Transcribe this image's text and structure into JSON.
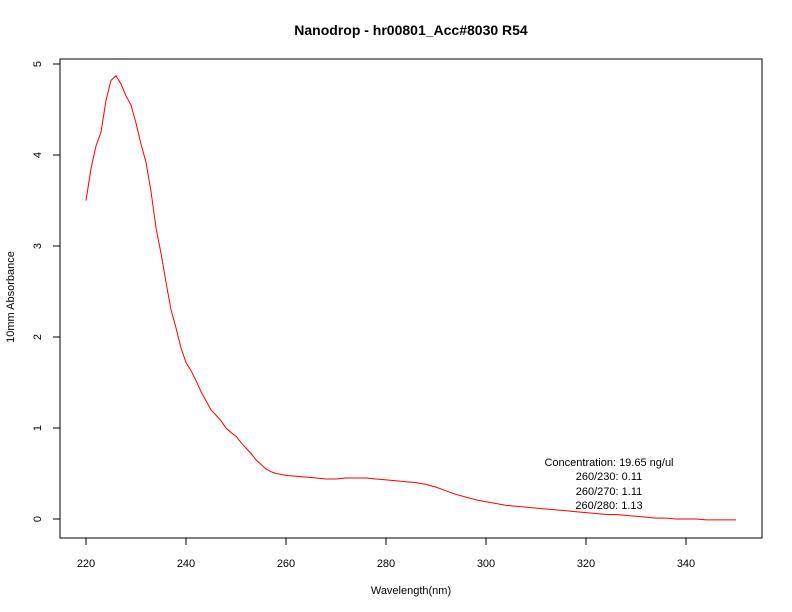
{
  "chart_data": {
    "type": "line",
    "title": "Nanodrop - hr00801_Acc#8030 R54",
    "xlabel": "Wavelength(nm)",
    "ylabel": "10mm Absorbance",
    "xlim": [
      220,
      350
    ],
    "ylim": [
      0,
      5
    ],
    "xticks": [
      220,
      240,
      260,
      280,
      300,
      320,
      340
    ],
    "yticks": [
      0,
      1,
      2,
      3,
      4,
      5
    ],
    "grid": false,
    "series_color": "#ff0000",
    "series": [
      {
        "x": [
          220,
          221,
          222,
          223,
          224,
          225,
          226,
          227,
          228,
          229,
          230,
          231,
          232,
          233,
          234,
          235,
          236,
          237,
          238,
          239,
          240,
          241,
          242,
          243,
          244,
          245,
          246,
          247,
          248,
          249,
          250,
          251,
          252,
          253,
          254,
          255,
          256,
          257,
          258,
          259,
          260,
          262,
          264,
          266,
          268,
          270,
          272,
          274,
          276,
          278,
          280,
          282,
          284,
          286,
          288,
          290,
          292,
          294,
          296,
          298,
          300,
          302,
          304,
          306,
          308,
          310,
          312,
          314,
          316,
          318,
          320,
          322,
          324,
          326,
          328,
          330,
          332,
          334,
          336,
          338,
          340,
          342,
          344,
          346,
          348,
          350
        ],
        "y": [
          3.5,
          3.85,
          4.1,
          4.25,
          4.6,
          4.82,
          4.87,
          4.78,
          4.65,
          4.55,
          4.35,
          4.12,
          3.92,
          3.6,
          3.2,
          2.92,
          2.6,
          2.3,
          2.1,
          1.88,
          1.72,
          1.63,
          1.52,
          1.4,
          1.3,
          1.2,
          1.14,
          1.08,
          1.0,
          0.95,
          0.91,
          0.84,
          0.78,
          0.72,
          0.65,
          0.6,
          0.55,
          0.52,
          0.5,
          0.49,
          0.48,
          0.47,
          0.46,
          0.45,
          0.44,
          0.44,
          0.45,
          0.45,
          0.45,
          0.44,
          0.43,
          0.42,
          0.41,
          0.4,
          0.38,
          0.35,
          0.31,
          0.27,
          0.24,
          0.21,
          0.19,
          0.17,
          0.15,
          0.14,
          0.13,
          0.12,
          0.11,
          0.1,
          0.09,
          0.08,
          0.07,
          0.06,
          0.05,
          0.05,
          0.04,
          0.03,
          0.02,
          0.01,
          0.01,
          0.0,
          0.0,
          0.0,
          -0.01,
          -0.01,
          -0.01,
          -0.01
        ]
      }
    ],
    "annotations": {
      "concentration": "Concentration: 19.65 ng/ul",
      "ratio_230": "260/230: 0.11",
      "ratio_270": "260/270: 1.11",
      "ratio_280": "260/280: 1.13"
    }
  }
}
